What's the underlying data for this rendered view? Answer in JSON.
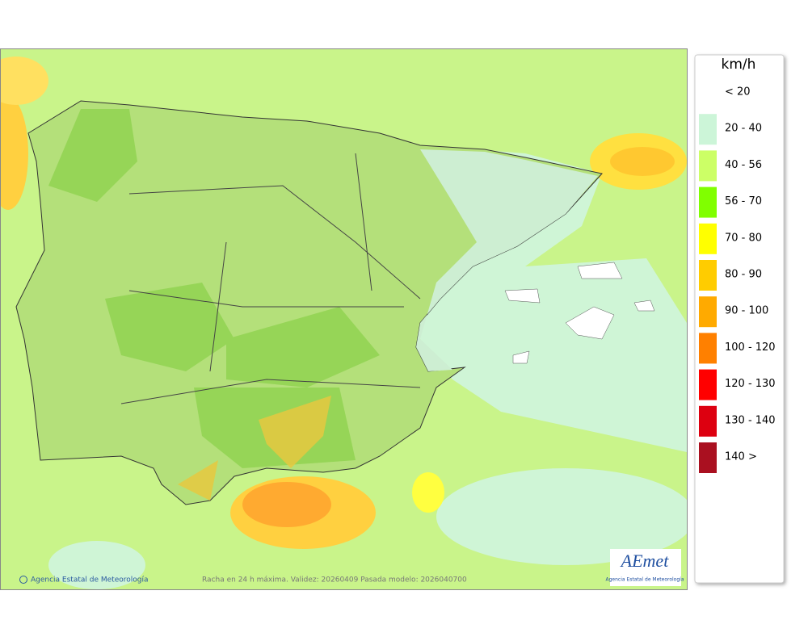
{
  "legend": {
    "unit": "km/h",
    "items": [
      {
        "label": "< 20",
        "color": null
      },
      {
        "label": "20 - 40",
        "color": "#ccf5d8"
      },
      {
        "label": "40 - 56",
        "color": "#ccff66"
      },
      {
        "label": "56 - 70",
        "color": "#80ff00"
      },
      {
        "label": "70 - 80",
        "color": "#ffff00"
      },
      {
        "label": "80 - 90",
        "color": "#ffcc00"
      },
      {
        "label": "90 - 100",
        "color": "#ffaa00"
      },
      {
        "label": "100 - 120",
        "color": "#ff8000"
      },
      {
        "label": "120 - 130",
        "color": "#ff0000"
      },
      {
        "label": "130 - 140",
        "color": "#dd0010"
      },
      {
        "label": "140 >",
        "color": "#aa1020"
      }
    ]
  },
  "footer": {
    "credit": "Agencia Estatal de Meteorología",
    "caption": "Racha en 24 h máxima. Validez: 20260409 Pasada modelo: 2026040700"
  },
  "logo": {
    "brand": "AEmet",
    "subtitle": "Agencia Estatal de Meteorología"
  }
}
